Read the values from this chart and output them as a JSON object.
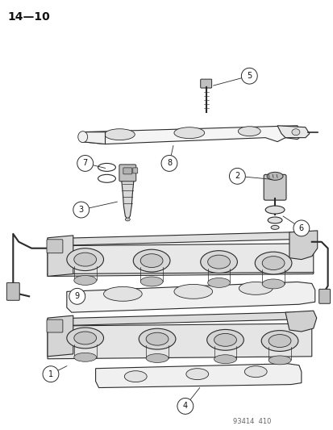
{
  "page_id": "14—10",
  "doc_id": "93414  410",
  "bg_color": "#ffffff",
  "line_color": "#2a2a2a",
  "label_color": "#111111",
  "fig_width": 4.14,
  "fig_height": 5.33,
  "dpi": 100
}
